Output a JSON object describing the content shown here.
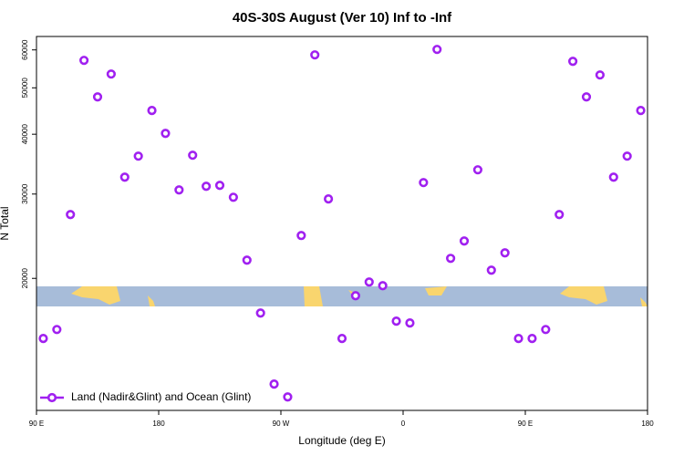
{
  "chart_data": {
    "type": "scatter",
    "title": "40S-30S August (Ver 10)   Inf to -Inf",
    "xlabel": "Longitude (deg E)",
    "ylabel": "N Total",
    "log_y": true,
    "xlim": [
      90,
      540
    ],
    "xticks": [
      {
        "value": 90,
        "label": "90 E"
      },
      {
        "value": 180,
        "label": "180"
      },
      {
        "value": 270,
        "label": "90 W"
      },
      {
        "value": 360,
        "label": "0"
      },
      {
        "value": 450,
        "label": "90 E"
      },
      {
        "value": 540,
        "label": "180"
      }
    ],
    "ylim": [
      10600,
      64000
    ],
    "yticks": [
      20000,
      30000,
      40000,
      50000,
      60000
    ],
    "legend": "bottom left",
    "series": [
      {
        "name": "Land (Nadir&Glint) and Ocean (Glint)",
        "color": "#a020f0",
        "x": [
          95,
          105,
          115,
          125,
          135,
          145,
          155,
          165,
          175,
          185,
          195,
          205,
          215,
          225,
          235,
          245,
          255,
          265,
          275,
          285,
          295,
          305,
          315,
          325,
          335,
          345,
          355,
          365,
          375,
          385,
          395,
          405,
          415,
          425,
          435,
          445,
          455,
          465,
          475,
          485,
          495,
          505,
          515,
          525,
          535
        ],
        "values": [
          14980,
          15640,
          27180,
          57060,
          47860,
          53420,
          32540,
          36000,
          44840,
          40160,
          30600,
          36160,
          31140,
          31280,
          29540,
          21830,
          16930,
          12030,
          11310,
          24580,
          58580,
          29300,
          14980,
          18400,
          19650,
          19310,
          16280,
          16140,
          31700,
          60140,
          22020,
          23940,
          33710,
          20800,
          22610,
          14980,
          14980,
          15640,
          27180,
          56800,
          47860,
          53190,
          32540,
          36000,
          44840
        ]
      }
    ]
  }
}
